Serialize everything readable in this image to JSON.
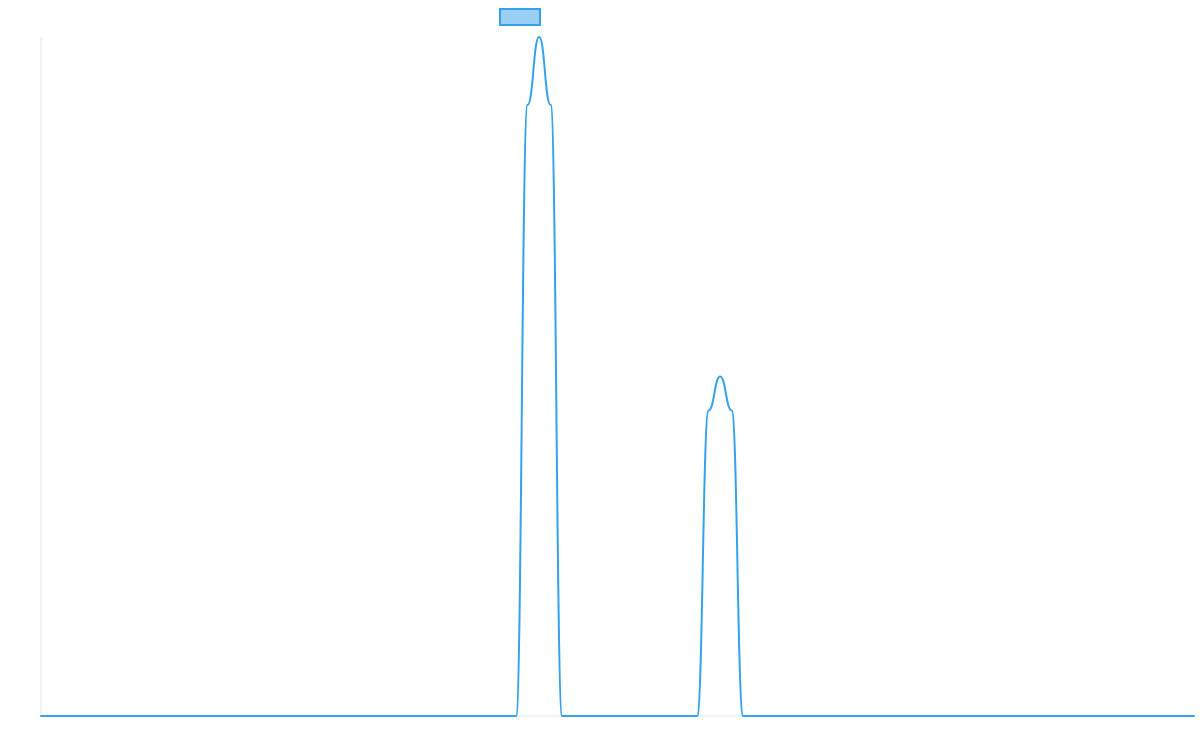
{
  "chart_data": {
    "type": "line",
    "title": "",
    "xlabel": "",
    "ylabel": "",
    "grid": false,
    "legend_placement": "top",
    "xlim": [
      0,
      100
    ],
    "ylim": [
      0,
      100
    ],
    "series": [
      {
        "name": "",
        "color": "#36A2EB",
        "fill_color": "#9AD0F5",
        "points": [
          [
            0,
            0
          ],
          [
            41.2,
            0
          ],
          [
            42.2,
            90
          ],
          [
            43.2,
            100
          ],
          [
            44.2,
            90
          ],
          [
            45.2,
            0
          ],
          [
            56.9,
            0
          ],
          [
            57.9,
            45
          ],
          [
            58.9,
            50
          ],
          [
            59.9,
            45
          ],
          [
            60.9,
            0
          ],
          [
            100,
            0
          ]
        ]
      }
    ]
  }
}
